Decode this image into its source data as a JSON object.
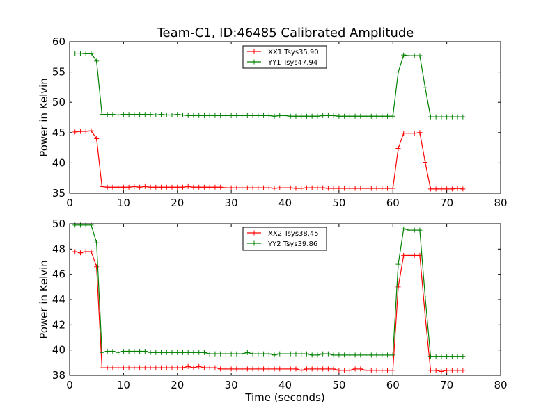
{
  "figure": {
    "title": "Team-C1, ID:46485 Calibrated Amplitude"
  },
  "chart_data": [
    {
      "type": "line",
      "ylabel": "Power in Kelvin",
      "xlabel": "",
      "xlim": [
        0,
        80
      ],
      "ylim": [
        35,
        60
      ],
      "xticks": [
        0,
        10,
        20,
        30,
        40,
        50,
        60,
        70,
        80
      ],
      "yticks": [
        35,
        40,
        45,
        50,
        55,
        60
      ],
      "grid": false,
      "legend_position": "top-center",
      "series": [
        {
          "name": "XX1 Tsys35.90",
          "color": "#ff0000",
          "x": [
            1,
            2,
            3,
            4,
            5,
            6,
            7,
            8,
            9,
            10,
            11,
            12,
            13,
            14,
            15,
            16,
            17,
            18,
            19,
            20,
            21,
            22,
            23,
            24,
            25,
            26,
            27,
            28,
            29,
            30,
            31,
            32,
            33,
            34,
            35,
            36,
            37,
            38,
            39,
            40,
            41,
            42,
            43,
            44,
            45,
            46,
            47,
            48,
            49,
            50,
            51,
            52,
            53,
            54,
            55,
            56,
            57,
            58,
            59,
            60,
            61,
            62,
            63,
            64,
            65,
            66,
            67,
            68,
            69,
            70,
            71,
            72,
            73
          ],
          "y": [
            45.1,
            45.2,
            45.2,
            45.3,
            44.0,
            36.1,
            36.0,
            36.0,
            36.0,
            36.0,
            36.0,
            36.1,
            36.0,
            36.1,
            36.0,
            36.0,
            36.0,
            36.0,
            36.0,
            36.0,
            36.0,
            36.1,
            36.0,
            36.0,
            36.0,
            36.0,
            36.0,
            36.0,
            35.9,
            35.9,
            35.9,
            35.9,
            35.9,
            35.9,
            35.9,
            35.9,
            35.9,
            35.8,
            35.9,
            35.9,
            35.9,
            35.8,
            35.8,
            35.9,
            35.9,
            35.9,
            35.9,
            35.8,
            35.8,
            35.8,
            35.8,
            35.8,
            35.8,
            35.8,
            35.8,
            35.8,
            35.8,
            35.8,
            35.8,
            35.8,
            42.4,
            44.9,
            44.9,
            44.9,
            45.0,
            40.1,
            35.7,
            35.7,
            35.7,
            35.7,
            35.7,
            35.8,
            35.7
          ]
        },
        {
          "name": "YY1 Tsys47.94",
          "color": "#008000",
          "x": [
            1,
            2,
            3,
            4,
            5,
            6,
            7,
            8,
            9,
            10,
            11,
            12,
            13,
            14,
            15,
            16,
            17,
            18,
            19,
            20,
            21,
            22,
            23,
            24,
            25,
            26,
            27,
            28,
            29,
            30,
            31,
            32,
            33,
            34,
            35,
            36,
            37,
            38,
            39,
            40,
            41,
            42,
            43,
            44,
            45,
            46,
            47,
            48,
            49,
            50,
            51,
            52,
            53,
            54,
            55,
            56,
            57,
            58,
            59,
            60,
            61,
            62,
            63,
            64,
            65,
            66,
            67,
            68,
            69,
            70,
            71,
            72,
            73
          ],
          "y": [
            58.0,
            58.0,
            58.1,
            58.1,
            56.8,
            48.0,
            48.0,
            48.0,
            47.9,
            48.0,
            48.0,
            48.0,
            48.0,
            48.0,
            48.0,
            47.9,
            48.0,
            47.9,
            47.9,
            48.0,
            47.9,
            47.8,
            47.8,
            47.8,
            47.8,
            47.8,
            47.8,
            47.8,
            47.8,
            47.8,
            47.8,
            47.8,
            47.8,
            47.8,
            47.8,
            47.8,
            47.8,
            47.7,
            47.8,
            47.8,
            47.7,
            47.7,
            47.7,
            47.7,
            47.7,
            47.7,
            47.8,
            47.8,
            47.8,
            47.7,
            47.7,
            47.7,
            47.7,
            47.7,
            47.7,
            47.7,
            47.7,
            47.7,
            47.7,
            47.7,
            55.0,
            57.8,
            57.7,
            57.7,
            57.7,
            52.4,
            47.6,
            47.6,
            47.6,
            47.6,
            47.6,
            47.6,
            47.6
          ]
        }
      ]
    },
    {
      "type": "line",
      "ylabel": "Power in Kelvin",
      "xlabel": "Time (seconds)",
      "xlim": [
        0,
        80
      ],
      "ylim": [
        38,
        50
      ],
      "xticks": [
        0,
        10,
        20,
        30,
        40,
        50,
        60,
        70,
        80
      ],
      "yticks": [
        38,
        40,
        42,
        44,
        46,
        48,
        50
      ],
      "grid": false,
      "legend_position": "top-center",
      "series": [
        {
          "name": "XX2 Tsys38.45",
          "color": "#ff0000",
          "x": [
            1,
            2,
            3,
            4,
            5,
            6,
            7,
            8,
            9,
            10,
            11,
            12,
            13,
            14,
            15,
            16,
            17,
            18,
            19,
            20,
            21,
            22,
            23,
            24,
            25,
            26,
            27,
            28,
            29,
            30,
            31,
            32,
            33,
            34,
            35,
            36,
            37,
            38,
            39,
            40,
            41,
            42,
            43,
            44,
            45,
            46,
            47,
            48,
            49,
            50,
            51,
            52,
            53,
            54,
            55,
            56,
            57,
            58,
            59,
            60,
            61,
            62,
            63,
            64,
            65,
            66,
            67,
            68,
            69,
            70,
            71,
            72,
            73
          ],
          "y": [
            47.8,
            47.7,
            47.8,
            47.8,
            46.6,
            38.6,
            38.6,
            38.6,
            38.6,
            38.6,
            38.6,
            38.6,
            38.6,
            38.6,
            38.6,
            38.6,
            38.6,
            38.6,
            38.6,
            38.6,
            38.6,
            38.7,
            38.6,
            38.7,
            38.6,
            38.6,
            38.6,
            38.5,
            38.5,
            38.5,
            38.5,
            38.5,
            38.5,
            38.5,
            38.5,
            38.5,
            38.5,
            38.5,
            38.5,
            38.5,
            38.5,
            38.5,
            38.4,
            38.5,
            38.5,
            38.5,
            38.5,
            38.5,
            38.5,
            38.4,
            38.4,
            38.4,
            38.5,
            38.5,
            38.4,
            38.4,
            38.4,
            38.4,
            38.4,
            38.4,
            45.0,
            47.5,
            47.5,
            47.5,
            47.5,
            42.7,
            38.4,
            38.4,
            38.3,
            38.4,
            38.4,
            38.4,
            38.4
          ]
        },
        {
          "name": "YY2 Tsys39.86",
          "color": "#008000",
          "x": [
            1,
            2,
            3,
            4,
            5,
            6,
            7,
            8,
            9,
            10,
            11,
            12,
            13,
            14,
            15,
            16,
            17,
            18,
            19,
            20,
            21,
            22,
            23,
            24,
            25,
            26,
            27,
            28,
            29,
            30,
            31,
            32,
            33,
            34,
            35,
            36,
            37,
            38,
            39,
            40,
            41,
            42,
            43,
            44,
            45,
            46,
            47,
            48,
            49,
            50,
            51,
            52,
            53,
            54,
            55,
            56,
            57,
            58,
            59,
            60,
            61,
            62,
            63,
            64,
            65,
            66,
            67,
            68,
            69,
            70,
            71,
            72,
            73
          ],
          "y": [
            49.9,
            49.9,
            49.9,
            49.9,
            48.5,
            39.8,
            39.9,
            39.9,
            39.8,
            39.9,
            39.9,
            39.9,
            39.9,
            39.9,
            39.8,
            39.8,
            39.8,
            39.8,
            39.8,
            39.8,
            39.8,
            39.8,
            39.8,
            39.8,
            39.8,
            39.7,
            39.7,
            39.7,
            39.7,
            39.7,
            39.7,
            39.7,
            39.8,
            39.7,
            39.7,
            39.7,
            39.7,
            39.6,
            39.7,
            39.7,
            39.7,
            39.7,
            39.7,
            39.7,
            39.6,
            39.6,
            39.7,
            39.7,
            39.6,
            39.6,
            39.6,
            39.6,
            39.6,
            39.6,
            39.6,
            39.6,
            39.6,
            39.6,
            39.6,
            39.6,
            46.8,
            49.6,
            49.5,
            49.5,
            49.5,
            44.2,
            39.5,
            39.5,
            39.5,
            39.5,
            39.5,
            39.5,
            39.5
          ]
        }
      ]
    }
  ]
}
